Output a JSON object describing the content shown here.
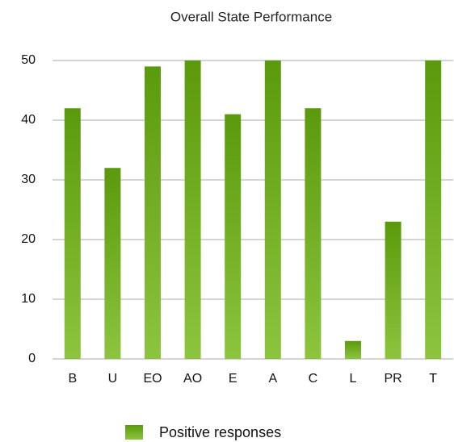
{
  "chart_data": {
    "type": "bar",
    "title": "Overall State Performance",
    "categories": [
      "B",
      "U",
      "EO",
      "AO",
      "E",
      "A",
      "C",
      "L",
      "PR",
      "T"
    ],
    "series": [
      {
        "name": "Positive responses",
        "color": "#6aab1c",
        "values": [
          42,
          32,
          49,
          50,
          41,
          50,
          42,
          3,
          23,
          50
        ]
      }
    ],
    "ylim": [
      0,
      50
    ],
    "yticks": [
      0,
      10,
      20,
      30,
      40,
      50
    ],
    "grid": true,
    "legend": "bottom"
  }
}
